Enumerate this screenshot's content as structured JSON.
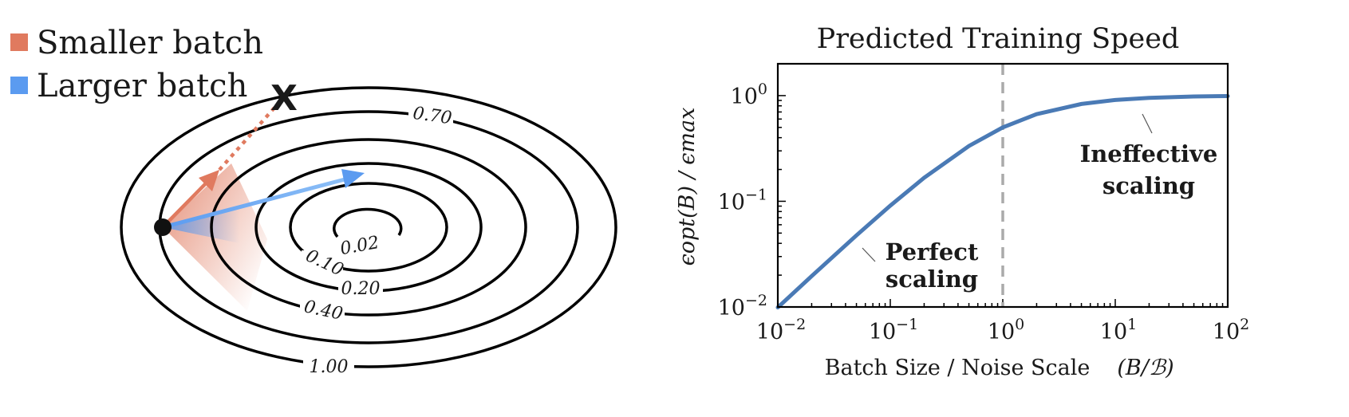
{
  "legend": {
    "items": [
      {
        "label": "Smaller batch",
        "color": "#e07a5f"
      },
      {
        "label": "Larger batch",
        "color": "#5b9bf0"
      }
    ]
  },
  "contour_plot": {
    "levels": [
      "1.00",
      "0.70",
      "0.40",
      "0.20",
      "0.10",
      "0.02"
    ],
    "start_marker_color": "#111111",
    "overshoot_marker": "X",
    "overshoot_color": "#c8462e"
  },
  "chart_data": {
    "type": "line",
    "title": "Predicted Training Speed",
    "xlabel": "Batch Size / Noise Scale",
    "xlabel_math": "(B/ℬ)",
    "ylabel": "ϵopt(B) / ϵmax",
    "xscale": "log",
    "yscale": "log",
    "xlim": [
      0.01,
      100
    ],
    "ylim": [
      0.01,
      2
    ],
    "xticks": [
      {
        "value": 0.01,
        "base": "10",
        "exp": "−2"
      },
      {
        "value": 0.1,
        "base": "10",
        "exp": "−1"
      },
      {
        "value": 1,
        "base": "10",
        "exp": "0"
      },
      {
        "value": 10,
        "base": "10",
        "exp": "1"
      },
      {
        "value": 100,
        "base": "10",
        "exp": "2"
      }
    ],
    "yticks": [
      {
        "value": 0.01,
        "base": "10",
        "exp": "−2"
      },
      {
        "value": 0.1,
        "base": "10",
        "exp": "−1"
      },
      {
        "value": 1,
        "base": "10",
        "exp": "0"
      }
    ],
    "series": [
      {
        "color": "#4a7ab5",
        "x": [
          0.01,
          0.02,
          0.05,
          0.1,
          0.2,
          0.5,
          1,
          2,
          5,
          10,
          20,
          50,
          100
        ],
        "y": [
          0.0099,
          0.0196,
          0.0476,
          0.0909,
          0.1667,
          0.3333,
          0.5,
          0.6667,
          0.8333,
          0.9091,
          0.9524,
          0.9804,
          0.9901
        ]
      }
    ],
    "vline": {
      "x": 1,
      "color": "#aaaaaa",
      "style": "dashed"
    },
    "annotations": [
      {
        "lines": [
          "Perfect",
          "scaling"
        ]
      },
      {
        "lines": [
          "Ineffective",
          "scaling"
        ]
      }
    ]
  }
}
